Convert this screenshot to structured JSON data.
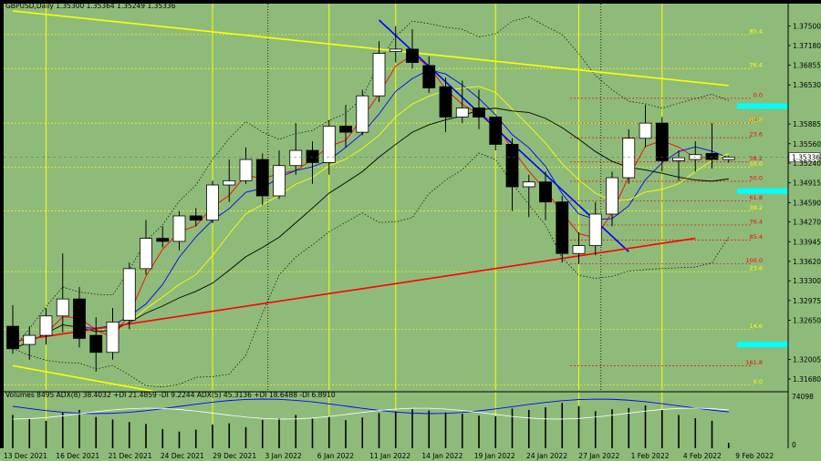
{
  "chart_data": {
    "type": "candlestick",
    "title": "GBPUSD,Daily  1.35300 1.35364 1.35249 1.35336",
    "symbol": "GBPUSD",
    "timeframe": "Daily",
    "ohlc_header": {
      "open": 1.353,
      "high": 1.35364,
      "low": 1.35249,
      "close": 1.35336
    },
    "current_price_label": "1.35336",
    "ylim": [
      1.315,
      1.3775
    ],
    "y_ticks": [
      1.375,
      1.3718,
      1.36855,
      1.3653,
      1.35885,
      1.3556,
      1.3524,
      1.34915,
      1.3459,
      1.3427,
      1.33945,
      1.3362,
      1.333,
      1.32975,
      1.3265,
      1.32005,
      1.3168
    ],
    "x_tick_labels": [
      "13 Dec 2021",
      "16 Dec 2021",
      "21 Dec 2021",
      "24 Dec 2021",
      "29 Dec 2021",
      "3 Jan 2022",
      "6 Jan 2022",
      "11 Jan 2022",
      "14 Jan 2022",
      "19 Jan 2022",
      "24 Jan 2022",
      "27 Jan 2022",
      "1 Feb 2022",
      "4 Feb 2022",
      "9 Feb 2022"
    ],
    "candles": [
      {
        "date": "2021-12-13",
        "o": 1.3255,
        "h": 1.329,
        "l": 1.321,
        "c": 1.3218
      },
      {
        "date": "2021-12-14",
        "o": 1.3225,
        "h": 1.3255,
        "l": 1.32,
        "c": 1.324
      },
      {
        "date": "2021-12-15",
        "o": 1.324,
        "h": 1.3285,
        "l": 1.3225,
        "c": 1.3272
      },
      {
        "date": "2021-12-16",
        "o": 1.3272,
        "h": 1.3375,
        "l": 1.3245,
        "c": 1.33
      },
      {
        "date": "2021-12-17",
        "o": 1.33,
        "h": 1.332,
        "l": 1.322,
        "c": 1.3235
      },
      {
        "date": "2021-12-20",
        "o": 1.324,
        "h": 1.327,
        "l": 1.318,
        "c": 1.3212
      },
      {
        "date": "2021-12-21",
        "o": 1.3212,
        "h": 1.3285,
        "l": 1.32,
        "c": 1.3262
      },
      {
        "date": "2021-12-22",
        "o": 1.3265,
        "h": 1.336,
        "l": 1.325,
        "c": 1.335
      },
      {
        "date": "2021-12-23",
        "o": 1.335,
        "h": 1.343,
        "l": 1.334,
        "c": 1.34
      },
      {
        "date": "2021-12-24",
        "o": 1.34,
        "h": 1.342,
        "l": 1.3385,
        "c": 1.3395
      },
      {
        "date": "2021-12-27",
        "o": 1.3395,
        "h": 1.3445,
        "l": 1.338,
        "c": 1.3437
      },
      {
        "date": "2021-12-28",
        "o": 1.3437,
        "h": 1.345,
        "l": 1.342,
        "c": 1.343
      },
      {
        "date": "2021-12-29",
        "o": 1.343,
        "h": 1.3495,
        "l": 1.3425,
        "c": 1.3488
      },
      {
        "date": "2021-12-30",
        "o": 1.3488,
        "h": 1.353,
        "l": 1.346,
        "c": 1.3495
      },
      {
        "date": "2021-12-31",
        "o": 1.3495,
        "h": 1.355,
        "l": 1.349,
        "c": 1.353
      },
      {
        "date": "2022-01-03",
        "o": 1.353,
        "h": 1.354,
        "l": 1.3455,
        "c": 1.347
      },
      {
        "date": "2022-01-04",
        "o": 1.347,
        "h": 1.3545,
        "l": 1.3465,
        "c": 1.352
      },
      {
        "date": "2022-01-05",
        "o": 1.352,
        "h": 1.359,
        "l": 1.3505,
        "c": 1.3545
      },
      {
        "date": "2022-01-06",
        "o": 1.3545,
        "h": 1.356,
        "l": 1.349,
        "c": 1.3525
      },
      {
        "date": "2022-01-07",
        "o": 1.3525,
        "h": 1.3595,
        "l": 1.3505,
        "c": 1.3585
      },
      {
        "date": "2022-01-10",
        "o": 1.3585,
        "h": 1.362,
        "l": 1.355,
        "c": 1.3575
      },
      {
        "date": "2022-01-11",
        "o": 1.3575,
        "h": 1.3645,
        "l": 1.357,
        "c": 1.3635
      },
      {
        "date": "2022-01-12",
        "o": 1.3635,
        "h": 1.3725,
        "l": 1.3625,
        "c": 1.3705
      },
      {
        "date": "2022-01-13",
        "o": 1.3708,
        "h": 1.375,
        "l": 1.369,
        "c": 1.3712
      },
      {
        "date": "2022-01-14",
        "o": 1.3712,
        "h": 1.3745,
        "l": 1.368,
        "c": 1.369
      },
      {
        "date": "2022-01-17",
        "o": 1.3685,
        "h": 1.37,
        "l": 1.364,
        "c": 1.3648
      },
      {
        "date": "2022-01-18",
        "o": 1.365,
        "h": 1.3665,
        "l": 1.3575,
        "c": 1.36
      },
      {
        "date": "2022-01-19",
        "o": 1.36,
        "h": 1.366,
        "l": 1.359,
        "c": 1.3615
      },
      {
        "date": "2022-01-20",
        "o": 1.3615,
        "h": 1.3645,
        "l": 1.358,
        "c": 1.36
      },
      {
        "date": "2022-01-21",
        "o": 1.36,
        "h": 1.36,
        "l": 1.3545,
        "c": 1.3555
      },
      {
        "date": "2022-01-24",
        "o": 1.3555,
        "h": 1.3565,
        "l": 1.3445,
        "c": 1.3485
      },
      {
        "date": "2022-01-25",
        "o": 1.3485,
        "h": 1.3505,
        "l": 1.3435,
        "c": 1.3493
      },
      {
        "date": "2022-01-26",
        "o": 1.3493,
        "h": 1.351,
        "l": 1.343,
        "c": 1.346
      },
      {
        "date": "2022-01-27",
        "o": 1.346,
        "h": 1.347,
        "l": 1.336,
        "c": 1.3375
      },
      {
        "date": "2022-01-28",
        "o": 1.3375,
        "h": 1.341,
        "l": 1.3358,
        "c": 1.3388
      },
      {
        "date": "2022-01-31",
        "o": 1.3388,
        "h": 1.346,
        "l": 1.3372,
        "c": 1.344
      },
      {
        "date": "2022-02-01",
        "o": 1.344,
        "h": 1.351,
        "l": 1.342,
        "c": 1.35
      },
      {
        "date": "2022-02-02",
        "o": 1.35,
        "h": 1.358,
        "l": 1.349,
        "c": 1.3565
      },
      {
        "date": "2022-02-03",
        "o": 1.3565,
        "h": 1.362,
        "l": 1.355,
        "c": 1.359
      },
      {
        "date": "2022-02-04",
        "o": 1.359,
        "h": 1.36,
        "l": 1.351,
        "c": 1.3528
      },
      {
        "date": "2022-02-07",
        "o": 1.3528,
        "h": 1.3545,
        "l": 1.3495,
        "c": 1.3533
      },
      {
        "date": "2022-02-08",
        "o": 1.353,
        "h": 1.356,
        "l": 1.351,
        "c": 1.3538
      },
      {
        "date": "2022-02-09",
        "o": 1.354,
        "h": 1.359,
        "l": 1.3515,
        "c": 1.353
      },
      {
        "date": "2022-02-10",
        "o": 1.353,
        "h": 1.3536,
        "l": 1.3525,
        "c": 1.3534
      }
    ],
    "volume_header": "Volumes 8495  ADX(8) 38.4032 +DI 21.4859 -DI 9.2244  ADX(5) 45.3136 +DI 18.6488 -DI 6.8910",
    "volume_scale_label": "74098",
    "volume_zero_label": "0",
    "volumes": [
      52000,
      47000,
      43000,
      56000,
      60000,
      49000,
      45000,
      41000,
      38000,
      30000,
      26000,
      29000,
      37000,
      39000,
      33000,
      44000,
      47000,
      52000,
      46000,
      49000,
      44000,
      48000,
      55000,
      58000,
      61000,
      59000,
      56000,
      54000,
      51000,
      50000,
      62000,
      60000,
      64000,
      71000,
      66000,
      58000,
      61000,
      63000,
      67000,
      60000,
      52000,
      47000,
      43000,
      8495
    ],
    "fibonacci_levels": [
      {
        "label": "0.0",
        "value": 1.3631,
        "color": "#ff0000"
      },
      {
        "label": "14.6",
        "value": 1.359,
        "color": "#ff0000"
      },
      {
        "label": "23.6",
        "value": 1.3566,
        "color": "#ff0000"
      },
      {
        "label": "38.2",
        "value": 1.3526,
        "color": "#ff0000"
      },
      {
        "label": "50.0",
        "value": 1.3494,
        "color": "#ff0000"
      },
      {
        "label": "61.8",
        "value": 1.3462,
        "color": "#ff0000"
      },
      {
        "label": "76.4",
        "value": 1.3422,
        "color": "#ff0000"
      },
      {
        "label": "85.4",
        "value": 1.3397,
        "color": "#ff0000"
      },
      {
        "label": "100.0",
        "value": 1.3358,
        "color": "#ff0000"
      },
      {
        "label": "161.8",
        "value": 1.319,
        "color": "#ff0000"
      },
      {
        "label": "85.4",
        "value": 1.3736,
        "color": "#ffff00"
      },
      {
        "label": "76.4",
        "value": 1.368,
        "color": "#ffff00"
      },
      {
        "label": "61.8",
        "value": 1.359,
        "color": "#ffff00"
      },
      {
        "label": "50.0",
        "value": 1.3517,
        "color": "#ffff00"
      },
      {
        "label": "38.2",
        "value": 1.3445,
        "color": "#ffff00"
      },
      {
        "label": "23.6",
        "value": 1.3345,
        "color": "#ffff00"
      },
      {
        "label": "14.6",
        "value": 1.325,
        "color": "#ffff00"
      },
      {
        "label": "0.0",
        "value": 1.3158,
        "color": "#ffff00"
      }
    ],
    "trendlines": [
      {
        "name": "yellow resistance",
        "color": "#ffff00",
        "points": [
          [
            "2021-12-13",
            1.3775
          ],
          [
            "2022-02-10",
            1.3652
          ]
        ]
      },
      {
        "name": "yellow support",
        "color": "#ffff00",
        "points": [
          [
            "2021-12-13",
            1.319
          ],
          [
            "2021-12-29",
            1.313
          ]
        ]
      },
      {
        "name": "blue downtrend",
        "color": "#0000ff",
        "points": [
          [
            "2022-01-12",
            1.376
          ],
          [
            "2022-02-02",
            1.3378
          ]
        ]
      },
      {
        "name": "red support",
        "color": "#ff0000",
        "points": [
          [
            "2021-12-13",
            1.323
          ],
          [
            "2022-02-08",
            1.34
          ]
        ]
      }
    ],
    "highlight_levels": [
      {
        "value": 1.3618,
        "color": "#00ffff"
      },
      {
        "value": 1.3478,
        "color": "#00ffff"
      },
      {
        "value": 1.3225,
        "color": "#00ffff"
      }
    ],
    "vertical_lines_yellow": [
      "2021-12-15",
      "2021-12-29",
      "2022-01-07",
      "2022-01-13",
      "2022-01-21",
      "2022-01-28",
      "2022-02-04"
    ],
    "vertical_lines_dotted": [
      "2022-01-03",
      "2022-01-31"
    ],
    "colors": {
      "background": "#8ebb7a",
      "bull_candle": "#ffffff",
      "bear_candle": "#000000"
    },
    "grid": false
  }
}
